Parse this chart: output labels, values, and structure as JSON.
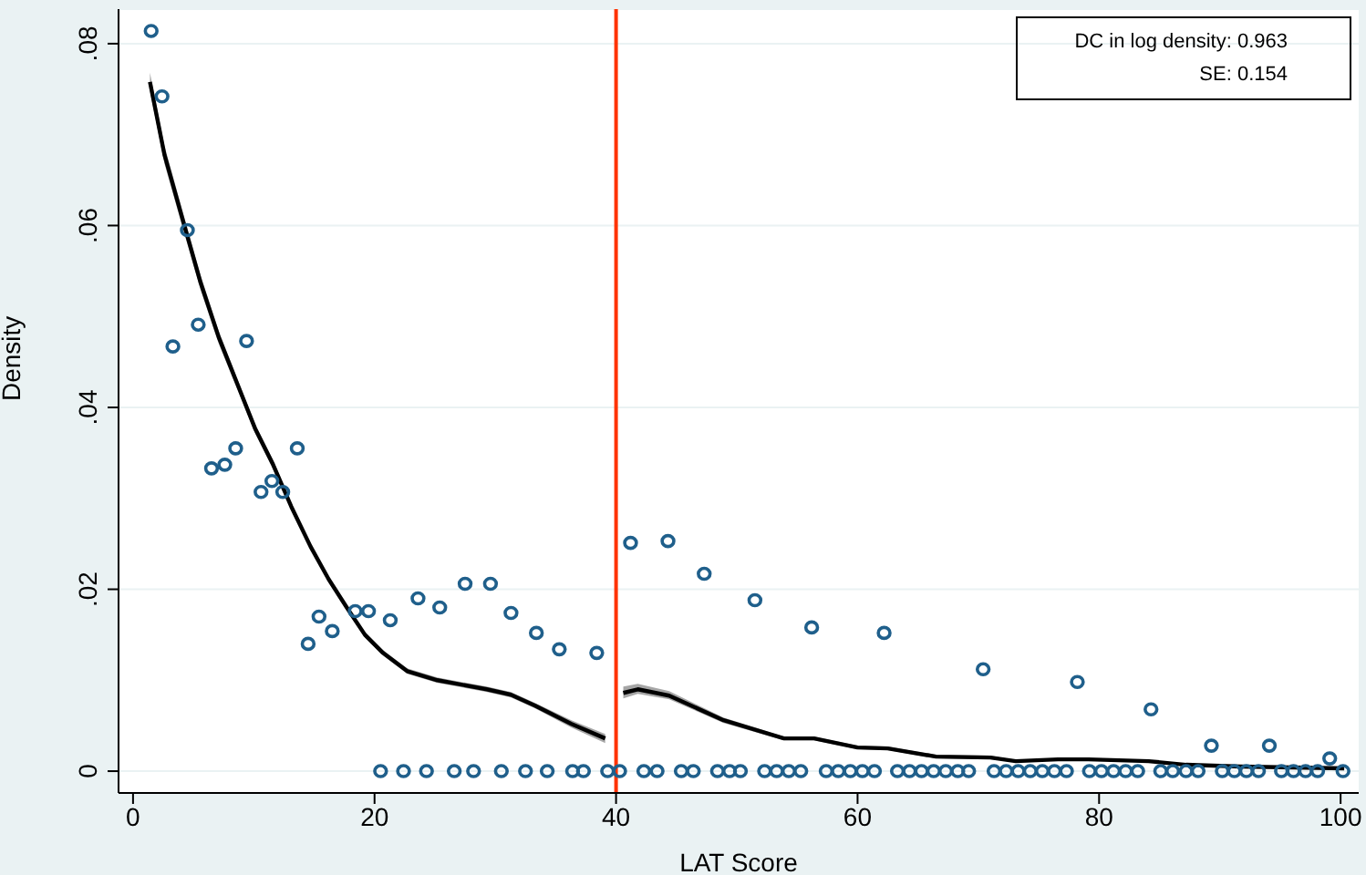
{
  "chart_data": {
    "type": "scatter",
    "xlabel": "LAT Score",
    "ylabel": "Density",
    "xlim": [
      -1.2,
      101.5
    ],
    "ylim": [
      -0.0024,
      0.0838
    ],
    "xticks": [
      0,
      20,
      40,
      60,
      80,
      100
    ],
    "yticks": [
      0,
      {
        "value": 0.02,
        "label": ".02"
      },
      {
        "value": 0.04,
        "label": ".04"
      },
      {
        "value": 0.06,
        "label": ".06"
      },
      {
        "value": 0.08,
        "label": ".08"
      }
    ],
    "grid": "y",
    "marker": "circle",
    "ref_lines": [
      {
        "axis": "x",
        "value": 40,
        "label": null,
        "color": "#ff3300"
      }
    ],
    "annotations": [
      "DC in log density: 0.963",
      "SE:  0.154"
    ],
    "series": [
      {
        "color": "#1f5f8b",
        "x": [
          1.5,
          2.4,
          4.5,
          3.3,
          5.4,
          9.4,
          6.5,
          7.6,
          8.5,
          10.6,
          11.5,
          12.4,
          13.6,
          14.5,
          15.4,
          16.5,
          18.4,
          19.5,
          21.3,
          23.6,
          25.4,
          27.5,
          29.6,
          31.3,
          33.4,
          35.3,
          38.4,
          41.2,
          44.3,
          47.3,
          51.5,
          56.2,
          62.2,
          70.4,
          78.2,
          84.3,
          89.3,
          94.1,
          99.1,
          20.5,
          22.4,
          24.3,
          26.6,
          28.2,
          30.5,
          32.5,
          34.3,
          36.4,
          37.3,
          39.3,
          40.3,
          42.3,
          43.4,
          45.4,
          46.4,
          48.4,
          49.4,
          50.3,
          52.3,
          53.3,
          54.3,
          55.3,
          57.4,
          58.4,
          59.4,
          60.4,
          61.4,
          63.3,
          64.3,
          65.3,
          66.3,
          67.3,
          68.3,
          69.2,
          71.3,
          72.3,
          73.3,
          74.3,
          75.3,
          76.3,
          77.3,
          79.2,
          80.2,
          81.2,
          82.2,
          83.2,
          85.1,
          86.1,
          87.2,
          88.2,
          90.2,
          91.2,
          92.2,
          93.2,
          95.1,
          96.1,
          97.1,
          98.1,
          100.2
        ],
        "values": [
          0.0814,
          0.0742,
          0.0595,
          0.0467,
          0.0491,
          0.0473,
          0.0333,
          0.0337,
          0.0355,
          0.0307,
          0.0319,
          0.0307,
          0.0355,
          0.014,
          0.017,
          0.0154,
          0.0176,
          0.0176,
          0.0166,
          0.019,
          0.018,
          0.0206,
          0.0206,
          0.0174,
          0.0152,
          0.0134,
          0.013,
          0.0251,
          0.0253,
          0.0217,
          0.0188,
          0.0158,
          0.0152,
          0.0112,
          0.0098,
          0.0068,
          0.0028,
          0.0028,
          0.0014,
          0,
          0,
          0,
          0,
          0,
          0,
          0,
          0,
          0,
          0,
          0,
          0,
          0,
          0,
          0,
          0,
          0,
          0,
          0,
          0,
          0,
          0,
          0,
          0,
          0,
          0,
          0,
          0,
          0,
          0,
          0,
          0,
          0,
          0,
          0,
          0,
          0,
          0,
          0,
          0,
          0,
          0,
          0,
          0,
          0,
          0,
          0,
          0,
          0,
          0,
          0,
          0,
          0,
          0,
          0,
          0,
          0,
          0,
          0,
          0
        ]
      },
      {
        "type": "line",
        "color": "#000000",
        "marker": "none",
        "x": [
          1.4,
          2.6,
          4.1,
          5.6,
          7.1,
          8.6,
          10.1,
          11.6,
          13.1,
          14.7,
          16.2,
          17.7,
          19.2,
          20.7,
          22.7,
          25.2,
          29.3,
          31.3,
          33.3,
          36.3,
          39.1
        ],
        "values": [
          0.0758,
          0.0678,
          0.0607,
          0.0537,
          0.0477,
          0.0427,
          0.0377,
          0.0337,
          0.0291,
          0.0247,
          0.0211,
          0.018,
          0.015,
          0.013,
          0.011,
          0.01,
          0.009,
          0.0084,
          0.0072,
          0.0052,
          0.0036
        ],
        "lower": [
          0.0748,
          0.0668,
          0.0598,
          0.0529,
          0.047,
          0.0421,
          0.0372,
          0.0332,
          0.0287,
          0.0244,
          0.0208,
          0.0177,
          0.0147,
          0.0127,
          0.0107,
          0.0097,
          0.0087,
          0.0081,
          0.0069,
          0.0048,
          0.0031
        ],
        "upper": [
          0.0768,
          0.0688,
          0.0616,
          0.0545,
          0.0484,
          0.0433,
          0.0382,
          0.0342,
          0.0295,
          0.025,
          0.0214,
          0.0183,
          0.0153,
          0.0133,
          0.0113,
          0.0103,
          0.0093,
          0.0087,
          0.0075,
          0.0056,
          0.0041
        ]
      },
      {
        "type": "line",
        "color": "#000000",
        "marker": "none",
        "x": [
          40.6,
          41.8,
          44.4,
          48.9,
          53.9,
          56.4,
          60.0,
          62.5,
          66.5,
          71.0,
          73.1,
          76.6,
          79.1,
          84.1,
          87.2,
          91.7,
          100.3
        ],
        "values": [
          0.0086,
          0.009,
          0.0083,
          0.0056,
          0.0036,
          0.0036,
          0.0026,
          0.0025,
          0.0016,
          0.0015,
          0.0011,
          0.0013,
          0.0013,
          0.0011,
          0.0007,
          0.0005,
          0.0003
        ],
        "lower": [
          0.008,
          0.0085,
          0.0079,
          0.0053,
          0.0034,
          0.0034,
          0.0024,
          0.0023,
          0.0014,
          0.0013,
          0.001,
          0.0012,
          0.0012,
          0.001,
          0.0006,
          0.0004,
          0.0002
        ],
        "upper": [
          0.0093,
          0.0096,
          0.0088,
          0.0059,
          0.0038,
          0.0038,
          0.0028,
          0.0027,
          0.0018,
          0.0017,
          0.0012,
          0.0014,
          0.0014,
          0.0012,
          0.0008,
          0.0006,
          0.0004
        ]
      }
    ]
  }
}
